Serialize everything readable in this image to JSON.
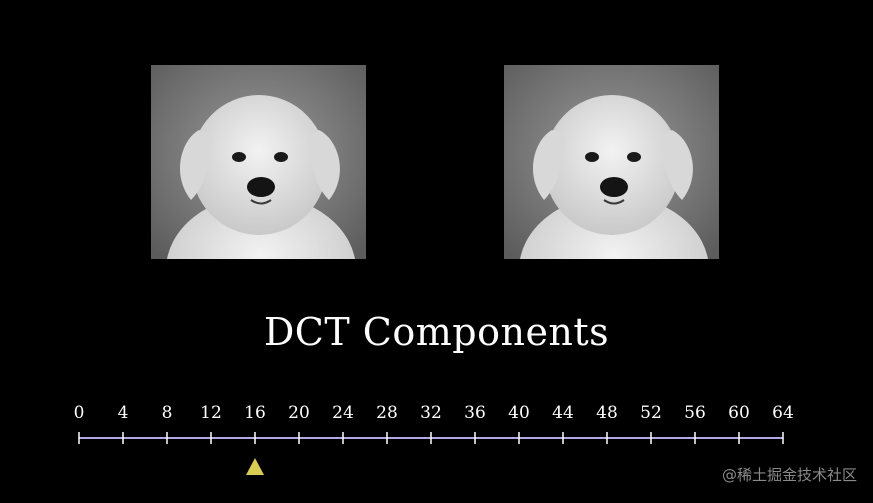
{
  "images": {
    "left": {
      "icon": "puppy-photo"
    },
    "right": {
      "icon": "puppy-photo"
    }
  },
  "title": "DCT Components",
  "slider": {
    "min": 0,
    "max": 64,
    "step": 4,
    "ticks": [
      "0",
      "4",
      "8",
      "12",
      "16",
      "20",
      "24",
      "28",
      "32",
      "36",
      "40",
      "44",
      "48",
      "52",
      "56",
      "60",
      "64"
    ],
    "value": 16,
    "line_color": "#b3a7e6",
    "marker_color": "#d9cc55"
  },
  "watermark": "@稀土掘金技术社区"
}
